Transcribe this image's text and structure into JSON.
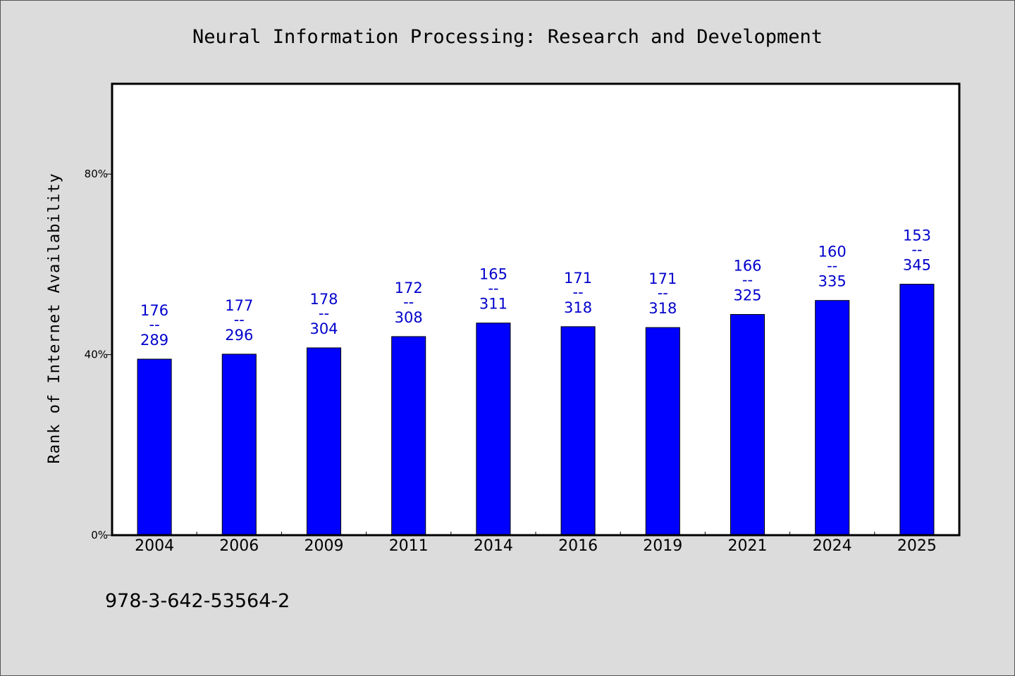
{
  "chart_data": {
    "type": "bar",
    "title": "Neural Information Processing: Research and Development",
    "xlabel": "",
    "ylabel": "Rank of Internet Availability",
    "ylim": [
      0,
      100
    ],
    "yticks": [
      {
        "value": 0,
        "label": "0%"
      },
      {
        "value": 40,
        "label": "40%"
      },
      {
        "value": 80,
        "label": "80%"
      }
    ],
    "categories": [
      "2004",
      "2006",
      "2009",
      "2011",
      "2014",
      "2016",
      "2019",
      "2021",
      "2024",
      "2025"
    ],
    "values": [
      39,
      40.1,
      41.5,
      44,
      47,
      46.2,
      46,
      48.9,
      52,
      55.6
    ],
    "labels": [
      {
        "top": "176",
        "sep": "--",
        "bottom": "289"
      },
      {
        "top": "177",
        "sep": "--",
        "bottom": "296"
      },
      {
        "top": "178",
        "sep": "--",
        "bottom": "304"
      },
      {
        "top": "172",
        "sep": "--",
        "bottom": "308"
      },
      {
        "top": "165",
        "sep": "--",
        "bottom": "311"
      },
      {
        "top": "171",
        "sep": "--",
        "bottom": "318"
      },
      {
        "top": "171",
        "sep": "--",
        "bottom": "318"
      },
      {
        "top": "166",
        "sep": "--",
        "bottom": "325"
      },
      {
        "top": "160",
        "sep": "--",
        "bottom": "335"
      },
      {
        "top": "153",
        "sep": "--",
        "bottom": "345"
      }
    ],
    "grid": false,
    "legend": "none"
  },
  "footer": {
    "isbn": "978-3-642-53564-2"
  },
  "colors": {
    "background": "#dcdcdc",
    "plot_background": "#ffffff",
    "bar": "#0000ff",
    "label": "#0000cc",
    "axis": "#000000"
  }
}
